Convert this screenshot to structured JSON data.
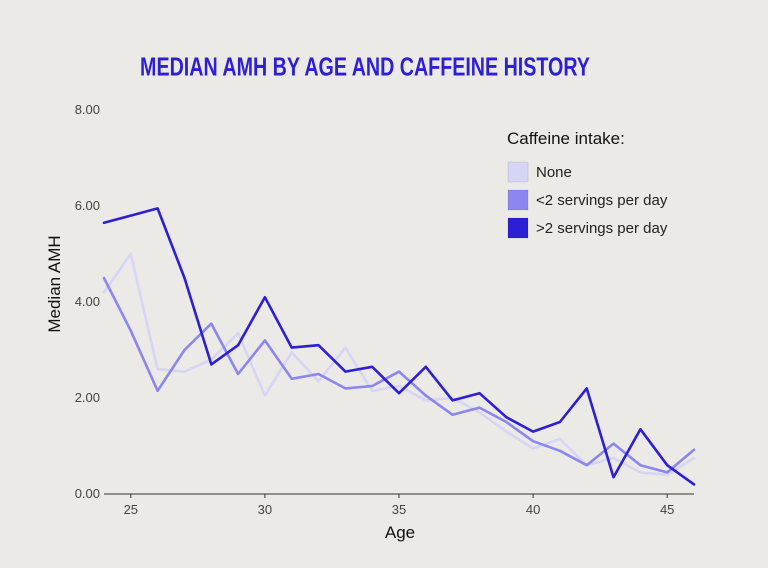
{
  "chart_data": {
    "type": "line",
    "title": "MEDIAN AMH BY AGE AND CAFFEINE HISTORY",
    "xlabel": "Age",
    "ylabel": "Median AMH",
    "xlim": [
      24,
      46
    ],
    "ylim": [
      0,
      8
    ],
    "x_ticks": [
      25,
      30,
      35,
      40,
      45
    ],
    "y_ticks": [
      "0.00",
      "2.00",
      "4.00",
      "6.00",
      "8.00"
    ],
    "grid": false,
    "legend": {
      "title": "Caffeine intake:",
      "position": "right"
    },
    "x": [
      24,
      25,
      26,
      27,
      28,
      29,
      30,
      31,
      32,
      33,
      34,
      35,
      36,
      37,
      38,
      39,
      40,
      41,
      42,
      43,
      44,
      45,
      46
    ],
    "series": [
      {
        "name": "None",
        "color": "#d6d5f6",
        "values": [
          4.2,
          5.0,
          2.6,
          2.55,
          2.8,
          3.35,
          2.05,
          2.95,
          2.35,
          3.05,
          2.15,
          2.25,
          1.95,
          2.0,
          1.7,
          1.3,
          0.95,
          1.15,
          0.6,
          0.75,
          0.45,
          0.4,
          0.75
        ]
      },
      {
        "name": "<2 servings per day",
        "color": "#8b86f0",
        "values": [
          4.5,
          3.4,
          2.15,
          3.0,
          3.55,
          2.5,
          3.2,
          2.4,
          2.5,
          2.2,
          2.25,
          2.55,
          2.05,
          1.65,
          1.8,
          1.5,
          1.1,
          0.9,
          0.6,
          1.05,
          0.6,
          0.45,
          0.92
        ]
      },
      {
        "name": ">2 servings per day",
        "color": "#2c1fd6",
        "values": [
          5.65,
          5.8,
          5.95,
          4.5,
          2.7,
          3.1,
          4.1,
          3.05,
          3.1,
          2.55,
          2.65,
          2.1,
          2.65,
          1.95,
          2.1,
          1.6,
          1.3,
          1.5,
          2.2,
          0.35,
          1.35,
          0.6,
          0.2
        ]
      }
    ]
  }
}
